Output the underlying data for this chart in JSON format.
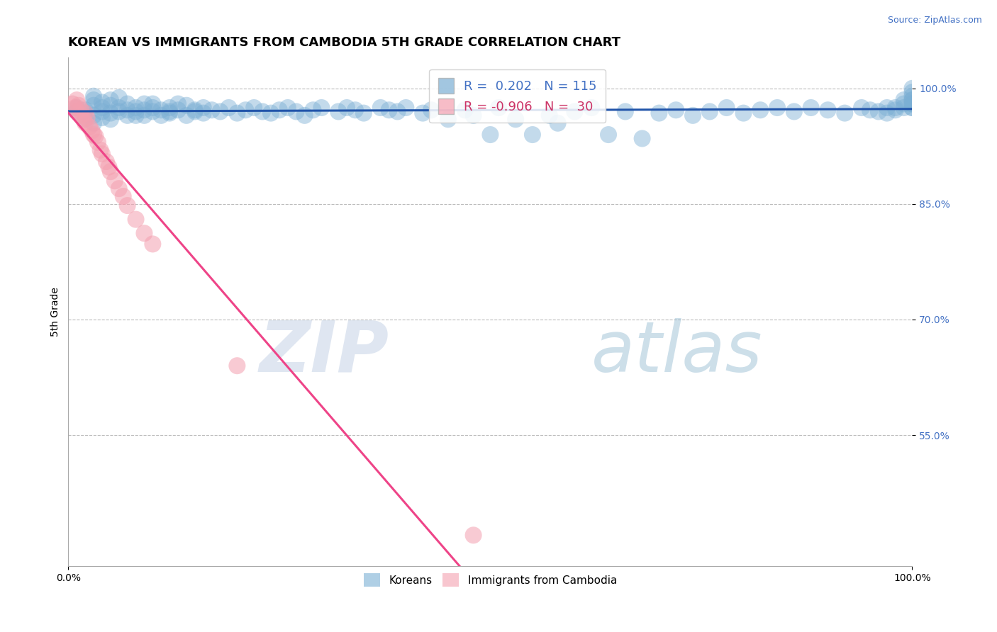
{
  "title": "KOREAN VS IMMIGRANTS FROM CAMBODIA 5TH GRADE CORRELATION CHART",
  "source_text": "Source: ZipAtlas.com",
  "ylabel": "5th Grade",
  "xmin": 0.0,
  "xmax": 1.0,
  "ymin": 0.38,
  "ymax": 1.04,
  "yticks": [
    0.55,
    0.7,
    0.85,
    1.0
  ],
  "ytick_labels": [
    "55.0%",
    "70.0%",
    "85.0%",
    "100.0%"
  ],
  "xtick_labels": [
    "0.0%",
    "100.0%"
  ],
  "xticks": [
    0.0,
    1.0
  ],
  "blue_r": 0.202,
  "blue_n": 115,
  "pink_r": -0.906,
  "pink_n": 30,
  "blue_color": "#7BAFD4",
  "pink_color": "#F4A0B0",
  "blue_line_color": "#2255AA",
  "pink_line_color": "#EE4488",
  "legend_label_blue": "Koreans",
  "legend_label_pink": "Immigrants from Cambodia",
  "watermark_zip": "ZIP",
  "watermark_atlas": "atlas",
  "title_fontsize": 13,
  "axis_label_fontsize": 10,
  "tick_fontsize": 10,
  "blue_scatter_x": [
    0.01,
    0.01,
    0.02,
    0.02,
    0.02,
    0.03,
    0.03,
    0.03,
    0.03,
    0.03,
    0.04,
    0.04,
    0.04,
    0.04,
    0.05,
    0.05,
    0.05,
    0.05,
    0.06,
    0.06,
    0.06,
    0.07,
    0.07,
    0.07,
    0.08,
    0.08,
    0.08,
    0.09,
    0.09,
    0.09,
    0.1,
    0.1,
    0.1,
    0.11,
    0.11,
    0.12,
    0.12,
    0.12,
    0.13,
    0.13,
    0.14,
    0.14,
    0.15,
    0.15,
    0.16,
    0.16,
    0.17,
    0.18,
    0.19,
    0.2,
    0.21,
    0.22,
    0.23,
    0.24,
    0.25,
    0.26,
    0.27,
    0.28,
    0.29,
    0.3,
    0.32,
    0.33,
    0.34,
    0.35,
    0.37,
    0.38,
    0.39,
    0.4,
    0.42,
    0.43,
    0.45,
    0.47,
    0.48,
    0.5,
    0.51,
    0.53,
    0.55,
    0.57,
    0.58,
    0.6,
    0.62,
    0.64,
    0.66,
    0.68,
    0.7,
    0.72,
    0.74,
    0.76,
    0.78,
    0.8,
    0.82,
    0.84,
    0.86,
    0.88,
    0.9,
    0.92,
    0.94,
    0.95,
    0.96,
    0.97,
    0.97,
    0.98,
    0.98,
    0.99,
    0.99,
    0.99,
    1.0,
    1.0,
    1.0,
    1.0,
    1.0,
    1.0,
    1.0,
    1.0,
    1.0
  ],
  "blue_scatter_y": [
    0.97,
    0.975,
    0.968,
    0.972,
    0.96,
    0.985,
    0.978,
    0.965,
    0.99,
    0.955,
    0.975,
    0.982,
    0.962,
    0.97,
    0.978,
    0.968,
    0.985,
    0.96,
    0.975,
    0.97,
    0.988,
    0.965,
    0.972,
    0.98,
    0.97,
    0.965,
    0.975,
    0.972,
    0.98,
    0.965,
    0.975,
    0.97,
    0.98,
    0.965,
    0.972,
    0.975,
    0.97,
    0.968,
    0.98,
    0.972,
    0.965,
    0.978,
    0.972,
    0.97,
    0.975,
    0.968,
    0.972,
    0.97,
    0.975,
    0.968,
    0.972,
    0.975,
    0.97,
    0.968,
    0.972,
    0.975,
    0.97,
    0.965,
    0.972,
    0.975,
    0.97,
    0.975,
    0.972,
    0.968,
    0.975,
    0.972,
    0.97,
    0.975,
    0.968,
    0.972,
    0.96,
    0.972,
    0.965,
    0.94,
    0.975,
    0.96,
    0.94,
    0.965,
    0.955,
    0.97,
    0.975,
    0.94,
    0.97,
    0.935,
    0.968,
    0.972,
    0.965,
    0.97,
    0.975,
    0.968,
    0.972,
    0.975,
    0.97,
    0.975,
    0.972,
    0.968,
    0.975,
    0.972,
    0.97,
    0.975,
    0.968,
    0.972,
    0.975,
    0.98,
    0.975,
    0.985,
    0.975,
    0.98,
    0.985,
    0.99,
    0.995,
    0.975,
    0.98,
    0.985,
    1.0
  ],
  "pink_scatter_x": [
    0.005,
    0.008,
    0.01,
    0.01,
    0.012,
    0.015,
    0.015,
    0.018,
    0.02,
    0.02,
    0.022,
    0.025,
    0.028,
    0.03,
    0.032,
    0.035,
    0.038,
    0.04,
    0.045,
    0.048,
    0.05,
    0.055,
    0.06,
    0.065,
    0.07,
    0.08,
    0.09,
    0.1,
    0.2,
    0.48
  ],
  "pink_scatter_y": [
    0.98,
    0.975,
    0.985,
    0.97,
    0.978,
    0.965,
    0.972,
    0.96,
    0.968,
    0.955,
    0.962,
    0.95,
    0.945,
    0.94,
    0.938,
    0.93,
    0.92,
    0.915,
    0.905,
    0.898,
    0.892,
    0.88,
    0.87,
    0.86,
    0.848,
    0.83,
    0.812,
    0.798,
    0.64,
    0.42
  ]
}
